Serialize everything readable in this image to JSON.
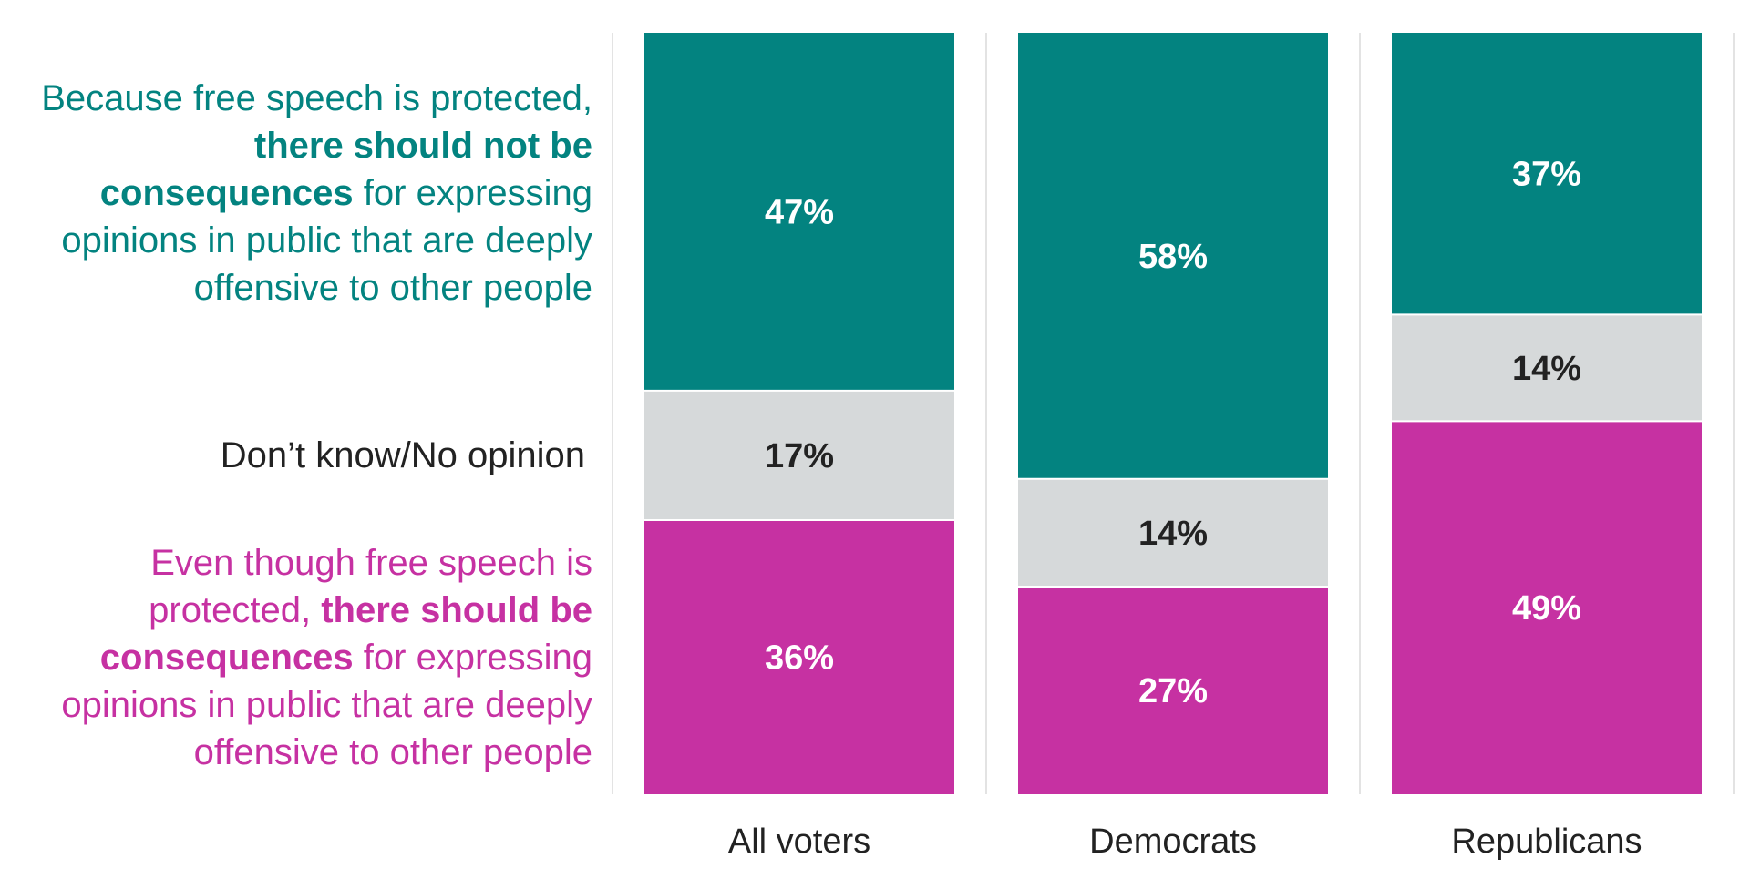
{
  "chart_data": {
    "type": "bar",
    "stacked": true,
    "normalized_percent": true,
    "categories": [
      "All voters",
      "Democrats",
      "Republicans"
    ],
    "series": [
      {
        "key": "no_consequences",
        "name_parts": [
          {
            "text": "Because free speech is protected, ",
            "bold": false
          },
          {
            "text": "there should not be consequences",
            "bold": true
          },
          {
            "text": " for expressing opinions in public that are deeply offensive to other people",
            "bold": false
          }
        ],
        "values": [
          47,
          58,
          37
        ],
        "labels": [
          "47%",
          "58%",
          "37%"
        ],
        "color": "#038380",
        "label_color": "#ffffff"
      },
      {
        "key": "dont_know",
        "name_parts": [
          {
            "text": "Don’t know/No opinion",
            "bold": false
          }
        ],
        "values": [
          17,
          14,
          14
        ],
        "labels": [
          "17%",
          "14%",
          "14%"
        ],
        "color": "#d6d9da",
        "label_color": "#222222"
      },
      {
        "key": "consequences",
        "name_parts": [
          {
            "text": "Even though free speech is protected, ",
            "bold": false
          },
          {
            "text": "there should be consequences",
            "bold": true
          },
          {
            "text": " for expressing opinions in public that are deeply offensive to other people",
            "bold": false
          }
        ],
        "values": [
          36,
          27,
          49
        ],
        "labels": [
          "36%",
          "27%",
          "49%"
        ],
        "color": "#c631a2",
        "label_color": "#ffffff"
      }
    ],
    "ylim": [
      0,
      100
    ],
    "legend_position": "left",
    "grid": false,
    "xlabel": "",
    "ylabel": "",
    "title": ""
  }
}
